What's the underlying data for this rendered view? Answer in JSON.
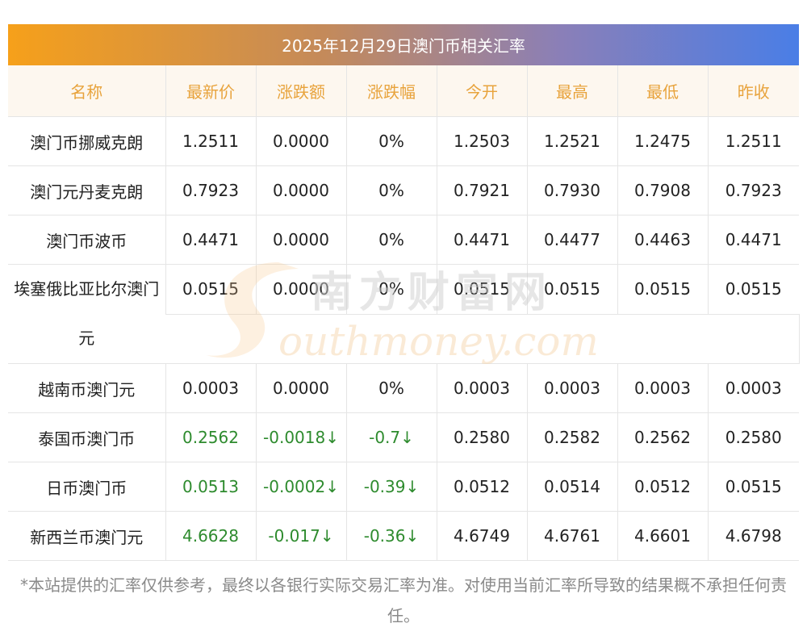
{
  "title": "2025年12月29日澳门币相关汇率",
  "headers": [
    "名称",
    "最新价",
    "涨跌额",
    "涨跌幅",
    "今开",
    "最高",
    "最低",
    "昨收"
  ],
  "rows": [
    {
      "name": "澳门币挪威克朗",
      "latest": "1.2511",
      "change": "0.0000",
      "pct": "0%",
      "open": "1.2503",
      "high": "1.2521",
      "low": "1.2475",
      "prev": "1.2511"
    },
    {
      "name": "澳门元丹麦克朗",
      "latest": "0.7923",
      "change": "0.0000",
      "pct": "0%",
      "open": "0.7921",
      "high": "0.7930",
      "low": "0.7908",
      "prev": "0.7923"
    },
    {
      "name": "澳门币波币",
      "latest": "0.4471",
      "change": "0.0000",
      "pct": "0%",
      "open": "0.4471",
      "high": "0.4477",
      "low": "0.4463",
      "prev": "0.4471"
    },
    {
      "name": "埃塞俄比亚比尔澳门元",
      "latest": "0.0515",
      "change": "0.0000",
      "pct": "0%",
      "open": "0.0515",
      "high": "0.0515",
      "low": "0.0515",
      "prev": "0.0515"
    },
    {
      "name": "越南币澳门元",
      "latest": "0.0003",
      "change": "0.0000",
      "pct": "0%",
      "open": "0.0003",
      "high": "0.0003",
      "low": "0.0003",
      "prev": "0.0003"
    },
    {
      "name": "泰国币澳门币",
      "latest": "0.2562",
      "change": "-0.0018↓",
      "pct": "-0.7↓",
      "open": "0.2580",
      "high": "0.2582",
      "low": "0.2562",
      "prev": "0.2580"
    },
    {
      "name": "日币澳门币",
      "latest": "0.0513",
      "change": "-0.0002↓",
      "pct": "-0.39↓",
      "open": "0.0512",
      "high": "0.0514",
      "low": "0.0512",
      "prev": "0.0515"
    },
    {
      "name": "新西兰币澳门元",
      "latest": "4.6628",
      "change": "-0.017↓",
      "pct": "-0.36↓",
      "open": "4.6749",
      "high": "4.6761",
      "low": "4.6601",
      "prev": "4.6798"
    }
  ],
  "watermark": {
    "cn": "南方财富网",
    "en": "outhmoney.com"
  },
  "footnote": "*本站提供的汇率仅供参考，最终以各银行实际交易汇率为准。对使用当前汇率所导致的结果概不承担任何责任。",
  "colors": {
    "header_text": "#e8a33c",
    "header_bg": "#fdf7ef",
    "down": "#2e8b2e",
    "footnote": "#8a8a8a"
  }
}
